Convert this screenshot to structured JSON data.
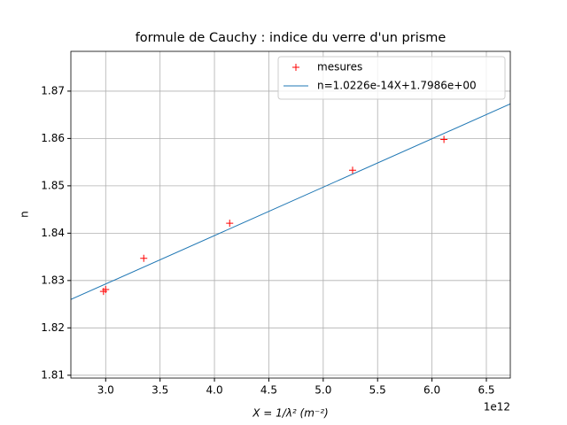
{
  "chart_data": {
    "type": "scatter",
    "title": "formule de Cauchy : indice du verre d'un prisme",
    "xlabel": "X = 1/λ²   (m⁻²)",
    "ylabel": "n",
    "x_offset_text": "1e12",
    "xlim": [
      2.68,
      6.72
    ],
    "ylim": [
      1.8094,
      1.8784
    ],
    "xticks": [
      {
        "value": 3,
        "label": "3.0"
      },
      3.5,
      {
        "value": 4,
        "label": "4.0"
      },
      4.5,
      {
        "value": 5,
        "label": "5.0"
      },
      5.5,
      {
        "value": 6,
        "label": "6.0"
      },
      6.5
    ],
    "yticks": [
      1.81,
      1.82,
      1.83,
      1.84,
      1.85,
      1.86,
      1.87
    ],
    "grid": true,
    "legend": "upper right",
    "series": [
      {
        "name": "mesures",
        "color": "#ff0000",
        "marker": "+",
        "x": [
          2.98,
          3.0,
          3.35,
          4.14,
          5.27,
          6.11
        ],
        "values": [
          1.8277,
          1.8281,
          1.8347,
          1.8421,
          1.8533,
          1.8598
        ]
      },
      {
        "name": "n=1.0226e-14X+1.7986e+00",
        "color": "#1f77b4",
        "marker": "line",
        "x": [
          2.68,
          6.72
        ],
        "values": [
          1.826,
          1.8673
        ]
      }
    ]
  }
}
